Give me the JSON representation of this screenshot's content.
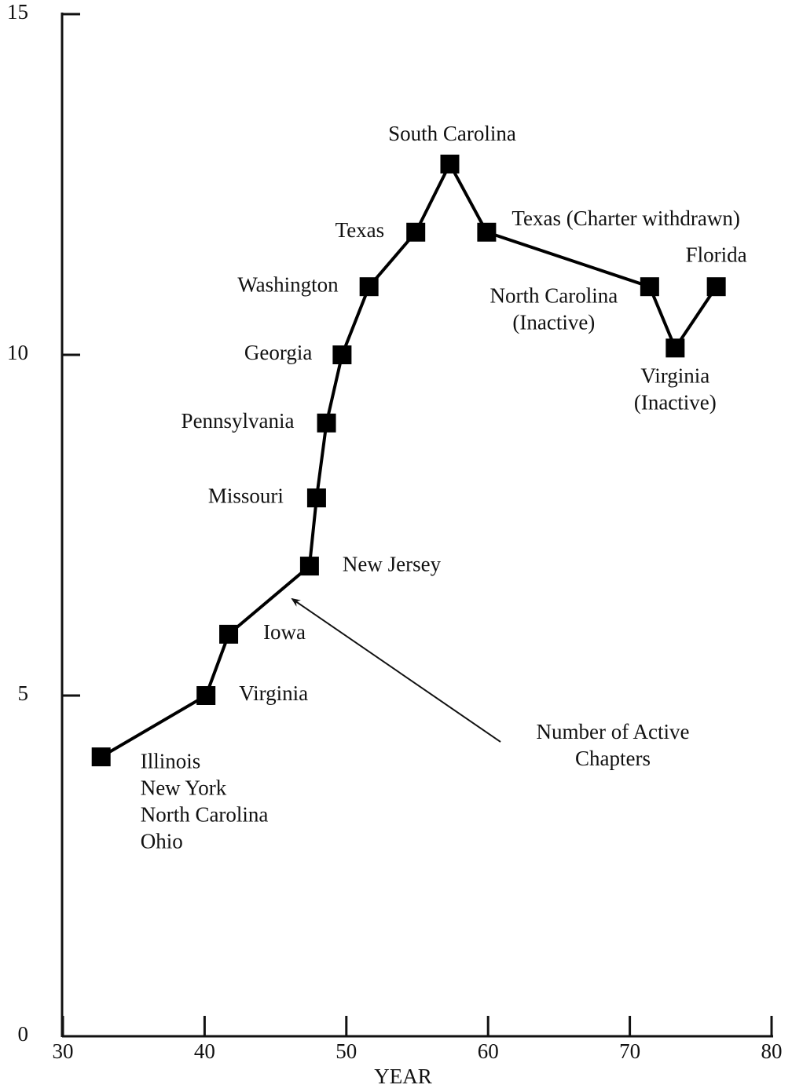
{
  "chart_data": {
    "type": "line",
    "x_label": "YEAR",
    "x": [
      32.7,
      40.1,
      41.7,
      47.4,
      47.9,
      48.6,
      49.7,
      51.6,
      54.9,
      57.3,
      59.9,
      71.4,
      73.2,
      76.1
    ],
    "series": [
      {
        "name": "Number of Active Chapters",
        "color": "#000000",
        "values": [
          4.1,
          5,
          5.9,
          6.9,
          7.9,
          9,
          10,
          11,
          11.8,
          12.8,
          11.8,
          11,
          10.1,
          11
        ]
      }
    ],
    "point_labels": [
      [
        "Illinois",
        "New York",
        "North Carolina",
        "Ohio"
      ],
      [
        "Virginia"
      ],
      [
        "Iowa"
      ],
      [
        "New Jersey"
      ],
      [
        "Missouri"
      ],
      [
        "Pennsylvania"
      ],
      [
        "Georgia"
      ],
      [
        "Washington"
      ],
      [
        "Texas"
      ],
      [
        "South Carolina"
      ],
      [
        "Texas (Charter withdrawn)"
      ],
      [
        "North Carolina",
        "(Inactive)"
      ],
      [
        "Virginia",
        "(Inactive)"
      ],
      [
        "Florida"
      ]
    ],
    "annotation": [
      "Number of Active",
      "Chapters"
    ],
    "xlim": [
      30,
      80
    ],
    "xticks": [
      30,
      40,
      50,
      60,
      70,
      80
    ],
    "ylim": [
      0,
      15
    ],
    "yticks": [
      0,
      5,
      10,
      15
    ]
  }
}
